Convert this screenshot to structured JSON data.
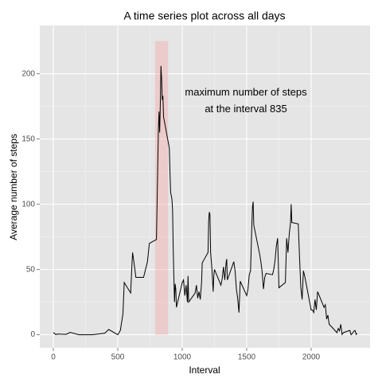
{
  "chart_data": {
    "type": "line",
    "title": "A time series plot across all days",
    "x_label": "Interval",
    "y_label": "Average number of steps",
    "annotation": [
      "maximum number of steps",
      "at the interval 835"
    ],
    "annotation_position": {
      "x": 1494,
      "y": 179
    },
    "highlight": {
      "xmin": 790,
      "xmax": 890,
      "ymin": 0,
      "ymax": 225,
      "color": "#f4a5a5"
    },
    "xlim": [
      -105,
      2457
    ],
    "ylim": [
      -10,
      237
    ],
    "xticks": [
      0,
      500,
      1000,
      1500,
      2000
    ],
    "yticks": [
      0,
      50,
      100,
      150,
      200
    ],
    "grid": true,
    "series": [
      {
        "name": "steps",
        "color": "#000000",
        "x": [
          0,
          20,
          30,
          100,
          130,
          200,
          300,
          400,
          430,
          500,
          520,
          540,
          550,
          600,
          610,
          615,
          630,
          640,
          700,
          730,
          745,
          800,
          810,
          815,
          820,
          825,
          830,
          835,
          840,
          845,
          850,
          855,
          900,
          905,
          910,
          920,
          925,
          930,
          935,
          940,
          945,
          950,
          955,
          1000,
          1010,
          1020,
          1030,
          1040,
          1045,
          1050,
          1100,
          1110,
          1120,
          1130,
          1140,
          1150,
          1155,
          1200,
          1205,
          1210,
          1215,
          1220,
          1230,
          1240,
          1245,
          1250,
          1300,
          1310,
          1320,
          1330,
          1340,
          1345,
          1350,
          1400,
          1410,
          1420,
          1430,
          1440,
          1450,
          1500,
          1510,
          1520,
          1530,
          1540,
          1545,
          1550,
          1555,
          1600,
          1610,
          1620,
          1630,
          1640,
          1650,
          1700,
          1710,
          1720,
          1730,
          1740,
          1745,
          1750,
          1800,
          1810,
          1820,
          1830,
          1840,
          1845,
          1850,
          1900,
          1910,
          1920,
          1930,
          1940,
          1950,
          2000,
          2010,
          2020,
          2030,
          2040,
          2050,
          2100,
          2110,
          2120,
          2130,
          2140,
          2150,
          2200,
          2210,
          2220,
          2230,
          2240,
          2250,
          2300,
          2310,
          2320,
          2330,
          2340,
          2350,
          2355
        ],
        "values": [
          1.7,
          0.1,
          0.5,
          0.3,
          1.8,
          0,
          0,
          1.2,
          4,
          0,
          3.3,
          16,
          40,
          32,
          54,
          63,
          52,
          44,
          44,
          56,
          70,
          73,
          129,
          157,
          171,
          155,
          177,
          206,
          196,
          180,
          183,
          167,
          143,
          124,
          109,
          104,
          96,
          66,
          45,
          25,
          39,
          35,
          21,
          40,
          42,
          30,
          38,
          25,
          45,
          25,
          32,
          38,
          28,
          33,
          27,
          40,
          55,
          63,
          87,
          94,
          92,
          63,
          51,
          33,
          45,
          50,
          38,
          43,
          52,
          42,
          55,
          58,
          42,
          56,
          49,
          35,
          28,
          17,
          41,
          30,
          35,
          46,
          49,
          84,
          98,
          102,
          84,
          62,
          56,
          48,
          35,
          44,
          47,
          46,
          50,
          57,
          68,
          74,
          57,
          36,
          40,
          74,
          63,
          77,
          86,
          100,
          86,
          85,
          59,
          36,
          27,
          49,
          45,
          19,
          19,
          17,
          27,
          19,
          33,
          21,
          23,
          12,
          15,
          8,
          7,
          1.6,
          4.8,
          3,
          8,
          0.2,
          1.6,
          3.3,
          0,
          1,
          2.6,
          3.3,
          0.2,
          1.1
        ]
      }
    ]
  }
}
